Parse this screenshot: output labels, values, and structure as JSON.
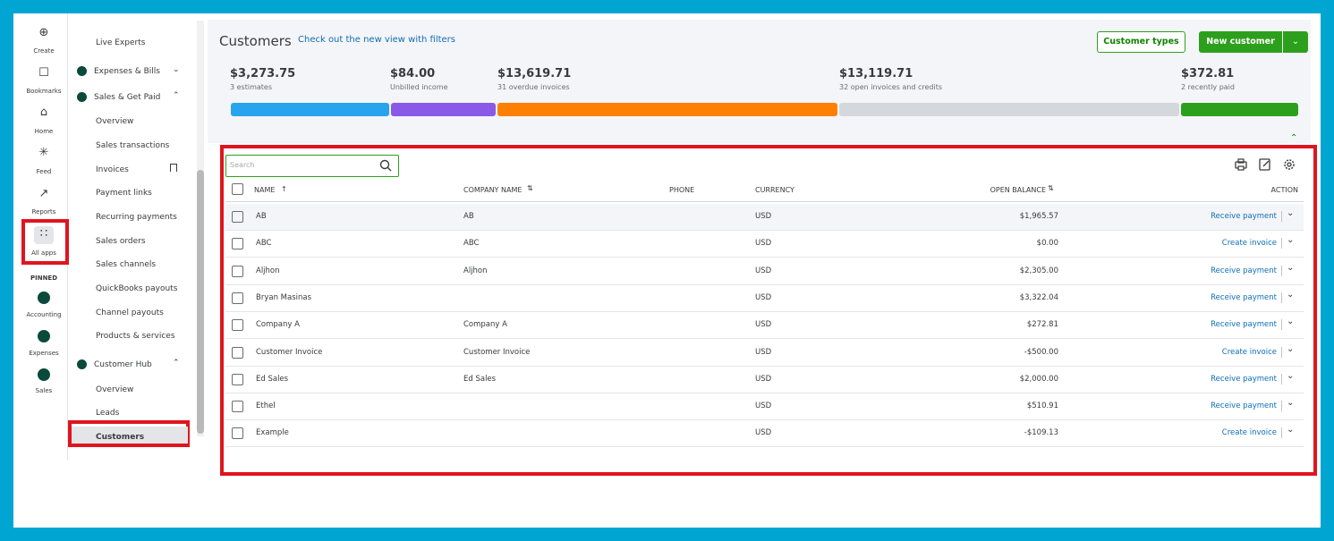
{
  "rail": {
    "items": [
      "Create",
      "Bookmarks",
      "Home",
      "Feed",
      "Reports",
      "All apps"
    ],
    "pinned_label": "PINNED",
    "pinned": [
      "Accounting",
      "Expenses",
      "Sales"
    ]
  },
  "sidebar": {
    "items": [
      "Live Experts",
      "Expenses & Bills",
      "Sales & Get Paid",
      "Overview",
      "Sales transactions",
      "Invoices",
      "Payment links",
      "Recurring payments",
      "Sales orders",
      "Sales channels",
      "QuickBooks payouts",
      "Channel payouts",
      "Products & services",
      "Customer Hub",
      "Overview",
      "Leads",
      "Customers"
    ]
  },
  "header": {
    "title": "Customers",
    "link": "Check out the new view with filters",
    "customer_types": "Customer types",
    "new_customer": "New customer"
  },
  "summary": [
    {
      "amount": "$3,273.75",
      "label": "3 estimates"
    },
    {
      "amount": "$84.00",
      "label": "Unbilled income"
    },
    {
      "amount": "$13,619.71",
      "label": "31 overdue invoices"
    },
    {
      "amount": "$13,119.71",
      "label": "32 open invoices and credits"
    },
    {
      "amount": "$372.81",
      "label": "2 recently paid"
    }
  ],
  "table": {
    "search_placeholder": "Search",
    "columns": [
      "NAME",
      "COMPANY NAME",
      "PHONE",
      "CURRENCY",
      "OPEN BALANCE",
      "ACTION"
    ],
    "rows": [
      {
        "name": "AB",
        "company": "AB",
        "currency": "USD",
        "balance": "$1,965.57",
        "action": "Receive payment"
      },
      {
        "name": "ABC",
        "company": "ABC",
        "currency": "USD",
        "balance": "$0.00",
        "action": "Create invoice"
      },
      {
        "name": "Aljhon",
        "company": "Aljhon",
        "currency": "USD",
        "balance": "$2,305.00",
        "action": "Receive payment"
      },
      {
        "name": "Bryan Masinas",
        "currency": "USD",
        "balance": "$3,322.04",
        "action": "Receive payment"
      },
      {
        "name": "Company A",
        "company": "Company A",
        "currency": "USD",
        "balance": "$272.81",
        "action": "Receive payment"
      },
      {
        "name": "Customer Invoice",
        "company": "Customer Invoice",
        "currency": "USD",
        "balance": "-$500.00",
        "action": "Create invoice"
      },
      {
        "name": "Ed Sales",
        "company": "Ed Sales",
        "currency": "USD",
        "balance": "$2,000.00",
        "action": "Receive payment"
      },
      {
        "name": "Ethel",
        "currency": "USD",
        "balance": "$510.91",
        "action": "Receive payment"
      },
      {
        "name": "Example",
        "currency": "USD",
        "balance": "-$109.13",
        "action": "Create invoice"
      }
    ]
  }
}
